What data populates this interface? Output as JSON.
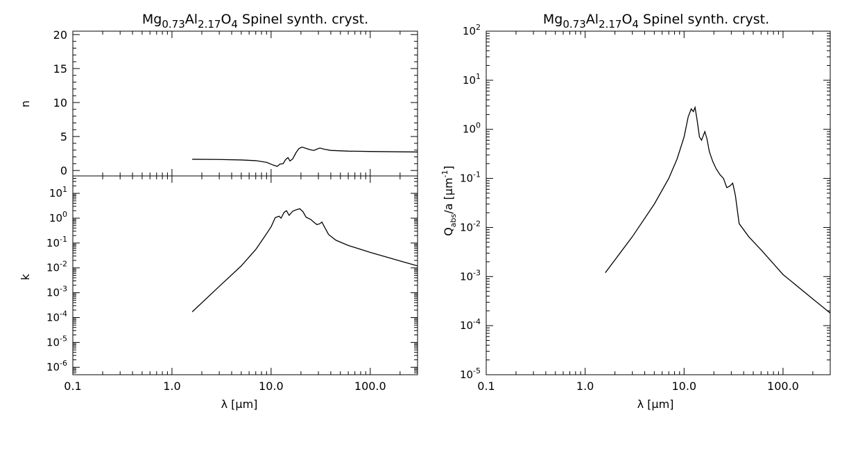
{
  "chart_data": [
    {
      "panel": "n",
      "type": "line",
      "title": {
        "prefix": "Mg",
        "sub1": "0.73",
        "mid": "Al",
        "sub2": "2.17",
        "mid2": "O",
        "sub3": "4",
        "suffix": " Spinel synth. cryst."
      },
      "ylabel": "n",
      "xscale": "log",
      "xlim": [
        0.1,
        300
      ],
      "ylim": [
        -0.8,
        20.5
      ],
      "yticks": [
        0,
        5,
        10,
        15,
        20
      ],
      "ytick_labels": [
        "0",
        "5",
        "10",
        "15",
        "20"
      ],
      "x": [
        1.6,
        3,
        5,
        7,
        9,
        10.5,
        11.5,
        12.3,
        13.2,
        14,
        14.8,
        15.5,
        16.5,
        17.8,
        19,
        20.5,
        21.5,
        23,
        25,
        27,
        29,
        31,
        34,
        40,
        60,
        100,
        200,
        300
      ],
      "y": [
        1.65,
        1.62,
        1.55,
        1.45,
        1.2,
        0.8,
        0.6,
        0.95,
        1.0,
        1.6,
        1.9,
        1.4,
        1.7,
        2.6,
        3.2,
        3.45,
        3.35,
        3.2,
        3.05,
        2.95,
        3.15,
        3.3,
        3.15,
        2.95,
        2.85,
        2.8,
        2.75,
        2.72
      ]
    },
    {
      "panel": "k",
      "type": "line",
      "ylabel": "k",
      "xlabel": "λ [μm]",
      "xscale": "log",
      "yscale": "log",
      "xlim": [
        0.1,
        300
      ],
      "ylim_exp": [
        -6.3,
        1.7
      ],
      "xticks": [
        0.1,
        1,
        10,
        100
      ],
      "xtick_labels": [
        "0.1",
        "1.0",
        "10.0",
        "100.0"
      ],
      "ytick_exponents": [
        -6,
        -5,
        -4,
        -3,
        -2,
        -1,
        0,
        1
      ],
      "x": [
        1.6,
        3,
        5,
        7,
        8.5,
        10,
        11,
        12,
        12.6,
        13.5,
        14.3,
        15.2,
        16.5,
        18,
        19.5,
        21,
        22.5,
        25,
        27.5,
        29,
        31,
        32.5,
        34,
        38,
        45,
        60,
        100,
        200,
        300
      ],
      "y": [
        0.00017,
        0.0018,
        0.012,
        0.055,
        0.17,
        0.45,
        1.05,
        1.2,
        1.0,
        1.7,
        2.0,
        1.3,
        1.9,
        2.2,
        2.4,
        1.8,
        1.1,
        0.9,
        0.65,
        0.55,
        0.6,
        0.7,
        0.5,
        0.22,
        0.13,
        0.08,
        0.042,
        0.019,
        0.012
      ]
    },
    {
      "panel": "Qabs",
      "type": "line",
      "title": {
        "prefix": "Mg",
        "sub1": "0.73",
        "mid": "Al",
        "sub2": "2.17",
        "mid2": "O",
        "sub3": "4",
        "suffix": " Spinel synth. cryst."
      },
      "ylabel": "Qabs/a [μm-1]",
      "xlabel": "λ [μm]",
      "xscale": "log",
      "yscale": "log",
      "xlim": [
        0.1,
        300
      ],
      "ylim_exp": [
        -5,
        2
      ],
      "xticks": [
        0.1,
        1,
        10,
        100
      ],
      "xtick_labels": [
        "0.1",
        "1.0",
        "10.0",
        "100.0"
      ],
      "ytick_exponents": [
        -5,
        -4,
        -3,
        -2,
        -1,
        0,
        1,
        2
      ],
      "x": [
        1.6,
        3,
        5,
        7,
        8.5,
        10,
        11,
        11.8,
        12.4,
        12.9,
        13.5,
        14.3,
        15,
        16.2,
        17,
        18,
        19.5,
        21,
        23,
        25,
        27,
        29,
        31,
        33,
        36,
        45,
        60,
        100,
        200,
        300
      ],
      "y": [
        0.0012,
        0.0065,
        0.03,
        0.1,
        0.25,
        0.7,
        1.8,
        2.6,
        2.3,
        2.8,
        1.6,
        0.7,
        0.6,
        0.9,
        0.65,
        0.35,
        0.22,
        0.16,
        0.12,
        0.1,
        0.065,
        0.07,
        0.08,
        0.045,
        0.012,
        0.0065,
        0.0035,
        0.0011,
        0.00035,
        0.00018
      ]
    }
  ]
}
